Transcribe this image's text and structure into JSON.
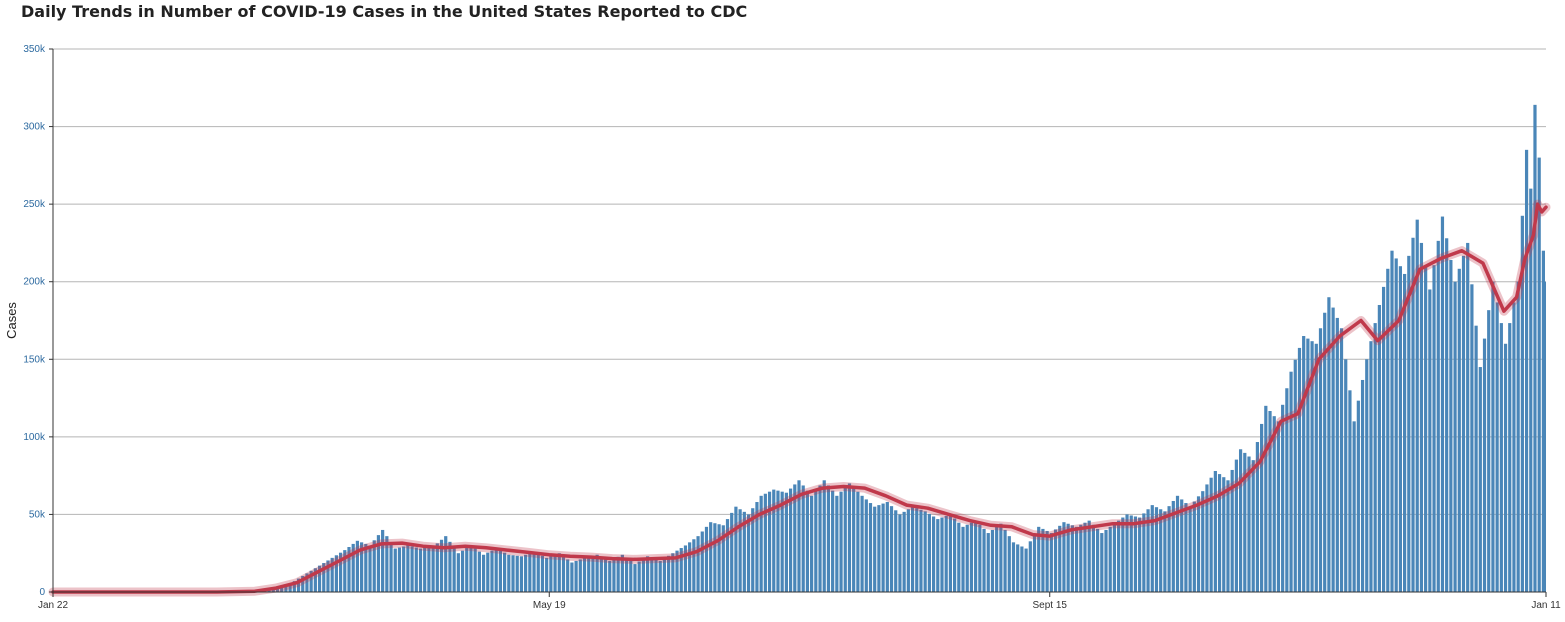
{
  "chart_data": {
    "type": "bar",
    "title": "Daily Trends in Number of COVID-19 Cases in the United States Reported to CDC",
    "xlabel": "",
    "ylabel": "Cases",
    "ylim": [
      0,
      350000
    ],
    "yticks": [
      0,
      50000,
      100000,
      150000,
      200000,
      250000,
      300000,
      350000
    ],
    "ytick_labels": [
      "0",
      "50k",
      "100k",
      "150k",
      "200k",
      "250k",
      "300k",
      "350k"
    ],
    "x_start": "2020-01-22",
    "x_end": "2021-01-11",
    "xticks": [
      {
        "date": "2020-01-22",
        "label": "Jan 22"
      },
      {
        "date": "2020-05-19",
        "label": "May 19"
      },
      {
        "date": "2020-09-15",
        "label": "Sept 15"
      },
      {
        "date": "2021-01-11",
        "label": "Jan 11"
      }
    ],
    "grid": true,
    "legend": "none",
    "series": [
      {
        "type": "bar",
        "color": "#4a86b8",
        "points": [
          [
            "2020-03-01",
            0
          ],
          [
            "2020-03-08",
            200
          ],
          [
            "2020-03-12",
            800
          ],
          [
            "2020-03-16",
            3000
          ],
          [
            "2020-03-19",
            7000
          ],
          [
            "2020-03-22",
            12000
          ],
          [
            "2020-03-25",
            17000
          ],
          [
            "2020-03-28",
            22000
          ],
          [
            "2020-03-31",
            27000
          ],
          [
            "2020-04-03",
            33000
          ],
          [
            "2020-04-06",
            30000
          ],
          [
            "2020-04-09",
            40000
          ],
          [
            "2020-04-12",
            28000
          ],
          [
            "2020-04-15",
            30000
          ],
          [
            "2020-04-18",
            28000
          ],
          [
            "2020-04-21",
            29000
          ],
          [
            "2020-04-24",
            36000
          ],
          [
            "2020-04-27",
            25000
          ],
          [
            "2020-04-30",
            30000
          ],
          [
            "2020-05-03",
            24000
          ],
          [
            "2020-05-06",
            28000
          ],
          [
            "2020-05-09",
            24000
          ],
          [
            "2020-05-12",
            23000
          ],
          [
            "2020-05-15",
            26000
          ],
          [
            "2020-05-18",
            22000
          ],
          [
            "2020-05-21",
            25000
          ],
          [
            "2020-05-24",
            19000
          ],
          [
            "2020-05-27",
            22000
          ],
          [
            "2020-05-30",
            24000
          ],
          [
            "2020-06-02",
            20000
          ],
          [
            "2020-06-05",
            24000
          ],
          [
            "2020-06-08",
            18000
          ],
          [
            "2020-06-11",
            23000
          ],
          [
            "2020-06-14",
            20000
          ],
          [
            "2020-06-17",
            25000
          ],
          [
            "2020-06-20",
            30000
          ],
          [
            "2020-06-23",
            36000
          ],
          [
            "2020-06-26",
            45000
          ],
          [
            "2020-06-29",
            43000
          ],
          [
            "2020-07-02",
            55000
          ],
          [
            "2020-07-05",
            50000
          ],
          [
            "2020-07-08",
            62000
          ],
          [
            "2020-07-11",
            66000
          ],
          [
            "2020-07-14",
            64000
          ],
          [
            "2020-07-17",
            72000
          ],
          [
            "2020-07-20",
            62000
          ],
          [
            "2020-07-23",
            72000
          ],
          [
            "2020-07-26",
            62000
          ],
          [
            "2020-07-29",
            70000
          ],
          [
            "2020-08-01",
            62000
          ],
          [
            "2020-08-04",
            55000
          ],
          [
            "2020-08-07",
            58000
          ],
          [
            "2020-08-10",
            50000
          ],
          [
            "2020-08-13",
            55000
          ],
          [
            "2020-08-16",
            52000
          ],
          [
            "2020-08-19",
            47000
          ],
          [
            "2020-08-22",
            50000
          ],
          [
            "2020-08-25",
            42000
          ],
          [
            "2020-08-28",
            46000
          ],
          [
            "2020-08-31",
            38000
          ],
          [
            "2020-09-03",
            44000
          ],
          [
            "2020-09-06",
            32000
          ],
          [
            "2020-09-09",
            28000
          ],
          [
            "2020-09-12",
            42000
          ],
          [
            "2020-09-15",
            38000
          ],
          [
            "2020-09-18",
            45000
          ],
          [
            "2020-09-21",
            42000
          ],
          [
            "2020-09-24",
            46000
          ],
          [
            "2020-09-27",
            38000
          ],
          [
            "2020-09-30",
            44000
          ],
          [
            "2020-10-03",
            50000
          ],
          [
            "2020-10-06",
            48000
          ],
          [
            "2020-10-09",
            56000
          ],
          [
            "2020-10-12",
            52000
          ],
          [
            "2020-10-15",
            62000
          ],
          [
            "2020-10-18",
            55000
          ],
          [
            "2020-10-21",
            65000
          ],
          [
            "2020-10-24",
            78000
          ],
          [
            "2020-10-27",
            72000
          ],
          [
            "2020-10-30",
            92000
          ],
          [
            "2020-11-02",
            85000
          ],
          [
            "2020-11-05",
            120000
          ],
          [
            "2020-11-08",
            110000
          ],
          [
            "2020-11-11",
            142000
          ],
          [
            "2020-11-14",
            165000
          ],
          [
            "2020-11-17",
            160000
          ],
          [
            "2020-11-20",
            190000
          ],
          [
            "2020-11-23",
            170000
          ],
          [
            "2020-11-26",
            110000
          ],
          [
            "2020-11-29",
            150000
          ],
          [
            "2020-12-02",
            185000
          ],
          [
            "2020-12-05",
            220000
          ],
          [
            "2020-12-08",
            205000
          ],
          [
            "2020-12-11",
            240000
          ],
          [
            "2020-12-14",
            195000
          ],
          [
            "2020-12-17",
            242000
          ],
          [
            "2020-12-20",
            200000
          ],
          [
            "2020-12-23",
            225000
          ],
          [
            "2020-12-26",
            145000
          ],
          [
            "2020-12-29",
            200000
          ],
          [
            "2021-01-01",
            160000
          ],
          [
            "2021-01-04",
            200000
          ],
          [
            "2021-01-06",
            285000
          ],
          [
            "2021-01-07",
            260000
          ],
          [
            "2021-01-08",
            314000
          ],
          [
            "2021-01-09",
            280000
          ],
          [
            "2021-01-10",
            220000
          ],
          [
            "2021-01-11",
            200000
          ]
        ]
      },
      {
        "type": "line",
        "color": "#c0394b",
        "points": [
          [
            "2020-01-22",
            0
          ],
          [
            "2020-03-01",
            0
          ],
          [
            "2020-03-10",
            500
          ],
          [
            "2020-03-15",
            2500
          ],
          [
            "2020-03-20",
            6000
          ],
          [
            "2020-03-25",
            13000
          ],
          [
            "2020-03-30",
            20000
          ],
          [
            "2020-04-04",
            27000
          ],
          [
            "2020-04-09",
            31000
          ],
          [
            "2020-04-14",
            31500
          ],
          [
            "2020-04-19",
            29500
          ],
          [
            "2020-04-24",
            28500
          ],
          [
            "2020-04-29",
            29500
          ],
          [
            "2020-05-04",
            28500
          ],
          [
            "2020-05-09",
            27000
          ],
          [
            "2020-05-14",
            25500
          ],
          [
            "2020-05-19",
            24000
          ],
          [
            "2020-05-24",
            23000
          ],
          [
            "2020-05-29",
            22500
          ],
          [
            "2020-06-03",
            21500
          ],
          [
            "2020-06-08",
            21000
          ],
          [
            "2020-06-13",
            21500
          ],
          [
            "2020-06-18",
            22000
          ],
          [
            "2020-06-23",
            26000
          ],
          [
            "2020-06-28",
            33000
          ],
          [
            "2020-07-03",
            42000
          ],
          [
            "2020-07-08",
            50000
          ],
          [
            "2020-07-13",
            56000
          ],
          [
            "2020-07-18",
            63000
          ],
          [
            "2020-07-23",
            67000
          ],
          [
            "2020-07-28",
            68000
          ],
          [
            "2020-08-02",
            67000
          ],
          [
            "2020-08-07",
            62000
          ],
          [
            "2020-08-12",
            56000
          ],
          [
            "2020-08-17",
            54000
          ],
          [
            "2020-08-22",
            50000
          ],
          [
            "2020-08-27",
            46000
          ],
          [
            "2020-09-01",
            43000
          ],
          [
            "2020-09-06",
            42000
          ],
          [
            "2020-09-11",
            37000
          ],
          [
            "2020-09-15",
            36000
          ],
          [
            "2020-09-20",
            40000
          ],
          [
            "2020-09-25",
            42000
          ],
          [
            "2020-09-30",
            44000
          ],
          [
            "2020-10-05",
            44000
          ],
          [
            "2020-10-10",
            46000
          ],
          [
            "2020-10-15",
            51000
          ],
          [
            "2020-10-20",
            56000
          ],
          [
            "2020-10-25",
            62000
          ],
          [
            "2020-10-30",
            70000
          ],
          [
            "2020-11-04",
            84000
          ],
          [
            "2020-11-09",
            110000
          ],
          [
            "2020-11-13",
            115000
          ],
          [
            "2020-11-18",
            150000
          ],
          [
            "2020-11-23",
            165000
          ],
          [
            "2020-11-28",
            175000
          ],
          [
            "2020-12-02",
            162000
          ],
          [
            "2020-12-07",
            175000
          ],
          [
            "2020-12-12",
            208000
          ],
          [
            "2020-12-17",
            215000
          ],
          [
            "2020-12-22",
            220000
          ],
          [
            "2020-12-27",
            212000
          ],
          [
            "2021-01-01",
            181000
          ],
          [
            "2021-01-04",
            190000
          ],
          [
            "2021-01-06",
            215000
          ],
          [
            "2021-01-08",
            230000
          ],
          [
            "2021-01-09",
            250000
          ],
          [
            "2021-01-10",
            245000
          ],
          [
            "2021-01-11",
            248000
          ]
        ]
      }
    ]
  }
}
